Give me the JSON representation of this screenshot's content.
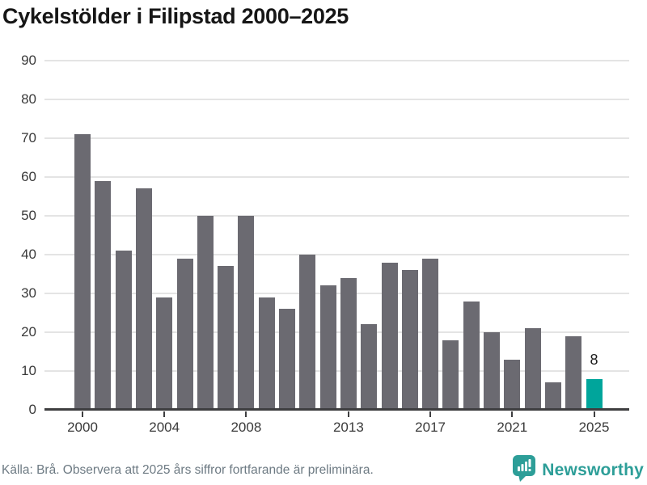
{
  "chart": {
    "title": "Cykelstölder i Filipstad 2000–2025"
  },
  "chart_data": {
    "type": "bar",
    "title": "Cykelstölder i Filipstad 2000–2025",
    "categories": [
      2000,
      2001,
      2002,
      2003,
      2004,
      2005,
      2006,
      2007,
      2008,
      2009,
      2010,
      2011,
      2012,
      2013,
      2014,
      2015,
      2016,
      2017,
      2018,
      2019,
      2020,
      2021,
      2022,
      2023,
      2024,
      2025
    ],
    "values": [
      71,
      59,
      41,
      57,
      29,
      39,
      50,
      37,
      50,
      29,
      26,
      40,
      32,
      34,
      22,
      38,
      36,
      39,
      18,
      28,
      20,
      13,
      21,
      7,
      19,
      8
    ],
    "xlabel": "",
    "ylabel": "",
    "ylim": [
      0,
      90
    ],
    "y_ticks": [
      0,
      10,
      20,
      30,
      40,
      50,
      60,
      70,
      80,
      90
    ],
    "x_ticks": [
      2000,
      2004,
      2008,
      2013,
      2017,
      2021,
      2025
    ],
    "grid": "horizontal",
    "legend": "none",
    "bar_color": "#6b6a71",
    "highlight": {
      "category": 2025,
      "color": "#00a59b",
      "label": "8"
    }
  },
  "footer": {
    "source": "Källa: Brå. Observera att 2025 års siffror fortfarande är preliminära.",
    "brand": "Newsworthy",
    "brand_color": "#2d9e98",
    "logo_icon": "newsworthy-speech-bubble-bar-chart-icon"
  }
}
